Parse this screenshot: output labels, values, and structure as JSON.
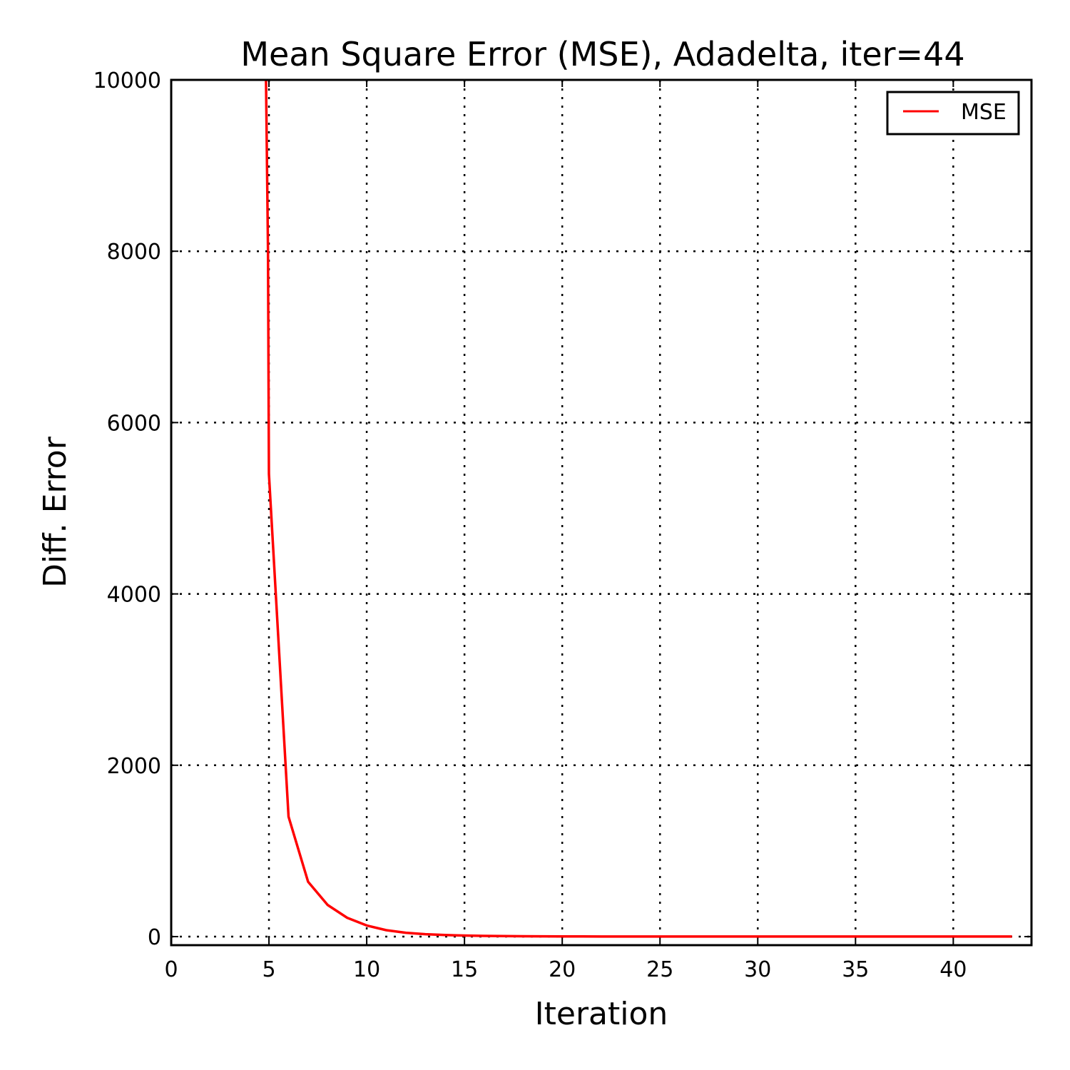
{
  "chart_data": {
    "type": "line",
    "title": "Mean Square Error (MSE), Adadelta, iter=44",
    "xlabel": "Iteration",
    "ylabel": "Diff. Error",
    "xlim": [
      0,
      44
    ],
    "ylim": [
      -100,
      10000
    ],
    "x_ticks": [
      0,
      5,
      10,
      15,
      20,
      25,
      30,
      35,
      40
    ],
    "y_ticks": [
      0,
      2000,
      4000,
      6000,
      8000,
      10000
    ],
    "grid": true,
    "legend_position": "top-right",
    "series": [
      {
        "name": "MSE",
        "color": "#ff0000",
        "x": [
          4.85,
          4.95,
          5,
          6,
          7,
          8,
          9,
          10,
          11,
          12,
          13,
          14,
          15,
          16,
          17,
          18,
          19,
          20,
          21,
          22,
          23,
          24,
          25,
          26,
          27,
          28,
          29,
          30,
          31,
          32,
          33,
          34,
          35,
          36,
          37,
          38,
          39,
          40,
          41,
          42,
          43
        ],
        "values": [
          10000,
          8000,
          5400,
          1400,
          640,
          370,
          220,
          130,
          75,
          45,
          28,
          18,
          12,
          8,
          6,
          4,
          3,
          2,
          2,
          1,
          1,
          1,
          1,
          1,
          1,
          1,
          1,
          1,
          1,
          1,
          1,
          1,
          1,
          1,
          1,
          1,
          1,
          1,
          1,
          1,
          1
        ]
      }
    ]
  }
}
